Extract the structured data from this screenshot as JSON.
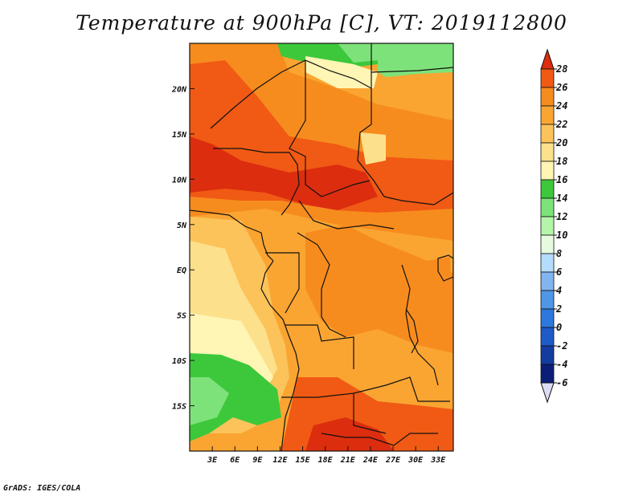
{
  "title": "Temperature at 900hPa [C], VT: 2019112800",
  "credit": "GrADS: IGES/COLA",
  "map": {
    "lon_range": [
      0,
      35
    ],
    "lat_range": [
      -20,
      25
    ],
    "lon_ticks": [
      "3E",
      "6E",
      "9E",
      "12E",
      "15E",
      "18E",
      "21E",
      "24E",
      "27E",
      "30E",
      "33E"
    ],
    "lat_ticks": [
      "20N",
      "15N",
      "10N",
      "5N",
      "EQ",
      "5S",
      "10S",
      "15S"
    ]
  },
  "colorbar": {
    "labels": [
      "28",
      "26",
      "24",
      "22",
      "20",
      "18",
      "16",
      "14",
      "12",
      "10",
      "8",
      "6",
      "4",
      "2",
      "0",
      "-2",
      "-4",
      "-6"
    ],
    "colors": [
      "#dc2d0f",
      "#f05a14",
      "#f78c1e",
      "#faa532",
      "#fcc35a",
      "#fde08c",
      "#fff5b4",
      "#3dc83c",
      "#7ee27a",
      "#b4f5aa",
      "#e6fae0",
      "#b4dcff",
      "#82b4f0",
      "#5096e6",
      "#2d78dc",
      "#1e5ac8",
      "#143ca0",
      "#0a1e78",
      "#dcdcf5"
    ]
  }
}
